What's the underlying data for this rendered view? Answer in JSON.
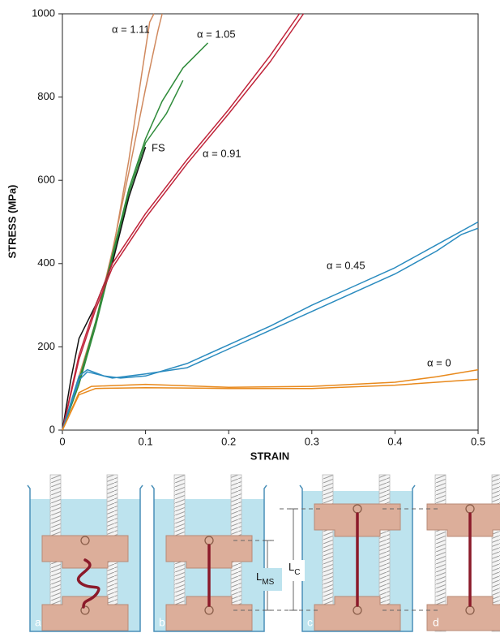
{
  "chart_data": {
    "type": "line",
    "x_label": "STRAIN",
    "y_label": "STRESS (MPa)",
    "xlim": [
      0,
      0.5
    ],
    "xticks": [
      0,
      0.1,
      0.2,
      0.3,
      0.4,
      0.5
    ],
    "ylim": [
      0,
      1000
    ],
    "yticks": [
      0,
      200,
      400,
      600,
      800,
      1000
    ],
    "grid": false,
    "series": [
      {
        "name": "α = 1.11",
        "color": "#d0895e",
        "curves": [
          {
            "x": [
              0,
              0.02,
              0.04,
              0.06,
              0.08,
              0.1,
              0.115,
              0.12
            ],
            "values": [
              0,
              130,
              260,
              430,
              620,
              820,
              960,
              1000
            ]
          },
          {
            "x": [
              0,
              0.02,
              0.04,
              0.06,
              0.08,
              0.095,
              0.105,
              0.11
            ],
            "values": [
              0,
              120,
              250,
              420,
              650,
              850,
              980,
              1000
            ]
          }
        ]
      },
      {
        "name": "α = 1.05",
        "color": "#2e8b3a",
        "curves": [
          {
            "x": [
              0,
              0.02,
              0.04,
              0.06,
              0.08,
              0.1,
              0.12,
              0.145,
              0.175
            ],
            "values": [
              0,
              120,
              260,
              420,
              580,
              700,
              790,
              870,
              930
            ]
          },
          {
            "x": [
              0,
              0.02,
              0.04,
              0.06,
              0.08,
              0.1,
              0.125,
              0.145
            ],
            "values": [
              0,
              110,
              250,
              410,
              570,
              690,
              760,
              840
            ]
          }
        ]
      },
      {
        "name": "FS",
        "color": "#111111",
        "curves": [
          {
            "x": [
              0,
              0.01,
              0.02,
              0.04,
              0.06,
              0.08,
              0.1
            ],
            "values": [
              0,
              120,
              220,
              300,
              400,
              560,
              680
            ]
          }
        ]
      },
      {
        "name": "α = 0.91",
        "color": "#c0243a",
        "curves": [
          {
            "x": [
              0,
              0.02,
              0.04,
              0.06,
              0.1,
              0.15,
              0.2,
              0.25,
              0.285
            ],
            "values": [
              0,
              180,
              300,
              400,
              520,
              650,
              770,
              900,
              1000
            ]
          },
          {
            "x": [
              0,
              0.02,
              0.04,
              0.06,
              0.1,
              0.15,
              0.2,
              0.25,
              0.29
            ],
            "values": [
              0,
              170,
              290,
              390,
              510,
              640,
              760,
              885,
              1000
            ]
          }
        ]
      },
      {
        "name": "α = 0.45",
        "color": "#2a8bbf",
        "curves": [
          {
            "x": [
              0,
              0.02,
              0.03,
              0.05,
              0.07,
              0.1,
              0.15,
              0.2,
              0.25,
              0.3,
              0.35,
              0.4,
              0.45,
              0.5
            ],
            "values": [
              0,
              130,
              145,
              130,
              125,
              130,
              160,
              205,
              250,
              300,
              345,
              390,
              445,
              500
            ]
          },
          {
            "x": [
              0,
              0.02,
              0.03,
              0.06,
              0.1,
              0.15,
              0.2,
              0.25,
              0.3,
              0.35,
              0.4,
              0.45,
              0.48,
              0.5
            ],
            "values": [
              0,
              120,
              140,
              125,
              135,
              150,
              195,
              240,
              285,
              330,
              375,
              430,
              470,
              485
            ]
          }
        ]
      },
      {
        "name": "α = 0",
        "color": "#e8891c",
        "curves": [
          {
            "x": [
              0,
              0.02,
              0.035,
              0.1,
              0.2,
              0.3,
              0.4,
              0.45,
              0.5
            ],
            "values": [
              0,
              90,
              105,
              110,
              103,
              105,
              115,
              128,
              145
            ]
          },
          {
            "x": [
              0,
              0.02,
              0.04,
              0.1,
              0.2,
              0.3,
              0.4,
              0.45,
              0.5
            ],
            "values": [
              0,
              85,
              100,
              102,
              100,
              100,
              108,
              115,
              122
            ]
          }
        ]
      }
    ]
  },
  "diagram": {
    "panels": [
      "a",
      "b",
      "c",
      "d"
    ],
    "dimensions": [
      {
        "main": "L",
        "sub": "MS"
      },
      {
        "main": "L",
        "sub": "C"
      }
    ]
  }
}
